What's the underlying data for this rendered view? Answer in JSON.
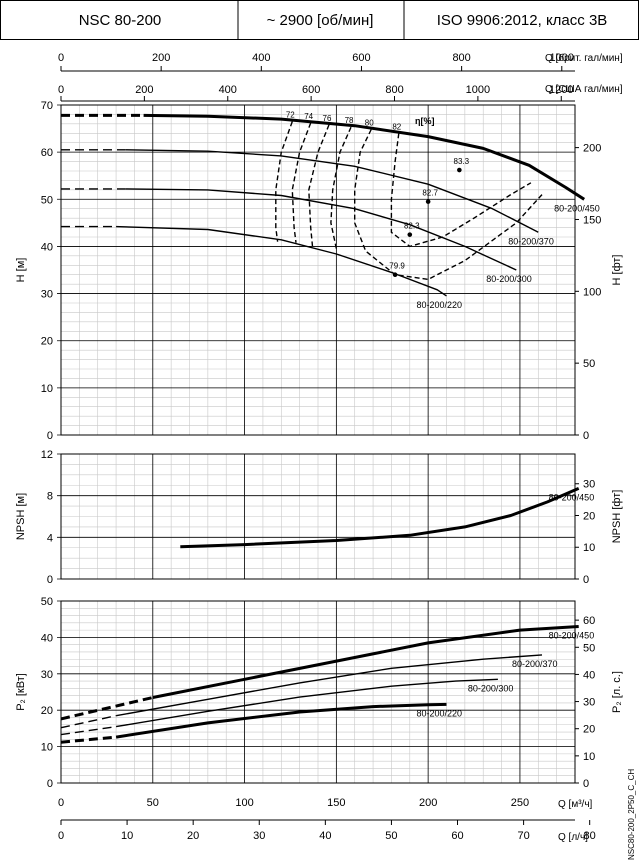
{
  "header": {
    "model": "NSC 80-200",
    "speed": "~ 2900 [об/мин]",
    "standard": "ISO 9906:2012, класс 3B"
  },
  "doc_code": "NSC80-200_2P50_C_CH",
  "top_axes": {
    "uk_label": "Q [брит. гал/мин]",
    "uk_ticks": [
      "0",
      "200",
      "400",
      "600",
      "800",
      "1000"
    ],
    "us_label": "Q [США гал/мин]",
    "us_ticks": [
      "0",
      "200",
      "400",
      "600",
      "800",
      "1000",
      "1200"
    ]
  },
  "bottom_axes": {
    "m3h_label": "Q [м³/ч]",
    "m3h_ticks": [
      "0",
      "50",
      "100",
      "150",
      "200",
      "250"
    ],
    "ls_label": "Q [л/ч]",
    "ls_ticks": [
      "0",
      "10",
      "20",
      "30",
      "40",
      "50",
      "60",
      "70",
      "80"
    ]
  },
  "colors": {
    "line": "#000000",
    "grid_minor": "#c8c8c8",
    "grid_major": "#000000"
  },
  "chart_data": [
    {
      "id": "head",
      "type": "line",
      "x_unit": "m3/h",
      "xlim": [
        0,
        280
      ],
      "ylabel": "H [м]",
      "ylim": [
        0,
        70
      ],
      "y_ticks": [
        "0",
        "10",
        "20",
        "30",
        "40",
        "50",
        "60",
        "70"
      ],
      "y2label": "H [фт]",
      "y2_ticks": [
        "0",
        "50",
        "100",
        "150",
        "200"
      ],
      "series": [
        {
          "name": "80-200/450",
          "label": "80-200/450",
          "width": "thick",
          "dashed": [
            [
              0,
              67.8
            ],
            [
              45,
              67.8
            ]
          ],
          "points": [
            [
              45,
              67.8
            ],
            [
              80,
              67.6
            ],
            [
              120,
              67
            ],
            [
              160,
              65.6
            ],
            [
              200,
              63.3
            ],
            [
              230,
              60.8
            ],
            [
              255,
              57.2
            ],
            [
              275,
              52.5
            ],
            [
              285,
              50
            ]
          ]
        },
        {
          "name": "80-200/370",
          "label": "80-200/370",
          "width": "thin",
          "dashed": [
            [
              0,
              60.5
            ],
            [
              35,
              60.5
            ]
          ],
          "points": [
            [
              35,
              60.5
            ],
            [
              80,
              60.2
            ],
            [
              120,
              59.2
            ],
            [
              160,
              57
            ],
            [
              200,
              53.2
            ],
            [
              235,
              48
            ],
            [
              260,
              43
            ]
          ]
        },
        {
          "name": "80-200/300",
          "label": "80-200/300",
          "width": "thin",
          "dashed": [
            [
              0,
              52.2
            ],
            [
              35,
              52.2
            ]
          ],
          "points": [
            [
              35,
              52.2
            ],
            [
              80,
              52
            ],
            [
              120,
              50.8
            ],
            [
              160,
              48
            ],
            [
              190,
              44.6
            ],
            [
              220,
              40
            ],
            [
              248,
              35
            ]
          ]
        },
        {
          "name": "80-200/220",
          "label": "80-200/220",
          "width": "thin",
          "dashed": [
            [
              0,
              44.2
            ],
            [
              30,
              44.2
            ]
          ],
          "points": [
            [
              30,
              44.2
            ],
            [
              80,
              43.6
            ],
            [
              120,
              41.4
            ],
            [
              150,
              38.4
            ],
            [
              180,
              34.5
            ],
            [
              205,
              30.8
            ],
            [
              210,
              29.5
            ]
          ]
        }
      ],
      "efficiency": {
        "title": "η[%]",
        "iso_lines": [
          {
            "label": "72",
            "points": [
              [
                126,
                66.5
              ],
              [
                120,
                60
              ],
              [
                117,
                52
              ],
              [
                117,
                44
              ],
              [
                118,
                41
              ]
            ]
          },
          {
            "label": "74",
            "points": [
              [
                136,
                66.2
              ],
              [
                130,
                60
              ],
              [
                126,
                52
              ],
              [
                127,
                44
              ],
              [
                128,
                40.8
              ]
            ]
          },
          {
            "label": "76",
            "points": [
              [
                146,
                65.8
              ],
              [
                140,
                60
              ],
              [
                135,
                52
              ],
              [
                136,
                44
              ],
              [
                137,
                40
              ]
            ]
          },
          {
            "label": "78",
            "points": [
              [
                158,
                65.3
              ],
              [
                152,
                60
              ],
              [
                148,
                52
              ],
              [
                147,
                45
              ],
              [
                150,
                39.5
              ]
            ]
          },
          {
            "label": "80",
            "points": [
              [
                169,
                64.8
              ],
              [
                163,
                60
              ],
              [
                160,
                52
              ],
              [
                160,
                45
              ],
              [
                166,
                39
              ],
              [
                182,
                34
              ],
              [
                200,
                33
              ],
              [
                220,
                37
              ],
              [
                248,
                45
              ],
              [
                262,
                51
              ]
            ]
          },
          {
            "label": "82",
            "points": [
              [
                184,
                64
              ],
              [
                182,
                58
              ],
              [
                180,
                50
              ],
              [
                180,
                43
              ],
              [
                190,
                40
              ],
              [
                208,
                42
              ],
              [
                225,
                46
              ],
              [
                245,
                51
              ],
              [
                256,
                53.5
              ]
            ]
          }
        ],
        "points": [
          {
            "label": "83.3",
            "q": 217,
            "h": 56.2
          },
          {
            "label": "82.7",
            "q": 200,
            "h": 49.5
          },
          {
            "label": "82.3",
            "q": 190,
            "h": 42.5
          },
          {
            "label": "79.9",
            "q": 182,
            "h": 34
          }
        ]
      }
    },
    {
      "id": "npsh",
      "type": "line",
      "x_unit": "m3/h",
      "xlim": [
        0,
        280
      ],
      "ylabel": "NPSH [м]",
      "ylim": [
        0,
        12
      ],
      "y_ticks": [
        "0",
        "4",
        "8",
        "12"
      ],
      "y2label": "NPSH [фт]",
      "y2_ticks": [
        "0",
        "10",
        "20",
        "30"
      ],
      "series": [
        {
          "name": "80-200/450",
          "label": "80-200/450",
          "width": "thick",
          "points": [
            [
              65,
              3.1
            ],
            [
              100,
              3.3
            ],
            [
              150,
              3.7
            ],
            [
              190,
              4.2
            ],
            [
              220,
              5.0
            ],
            [
              245,
              6.1
            ],
            [
              265,
              7.4
            ],
            [
              282,
              8.7
            ]
          ]
        }
      ]
    },
    {
      "id": "power",
      "type": "line",
      "x_unit": "m3/h",
      "xlim": [
        0,
        280
      ],
      "ylabel": "P₂ [кВт]",
      "ylim": [
        0,
        50
      ],
      "y_ticks": [
        "0",
        "10",
        "20",
        "30",
        "40",
        "50"
      ],
      "y2label": "P₂ [л. с.]",
      "y2_ticks": [
        "0",
        "10",
        "20",
        "30",
        "40",
        "50",
        "60"
      ],
      "series": [
        {
          "name": "80-200/450",
          "label": "80-200/450",
          "width": "thick",
          "dashed": [
            [
              0,
              17.6
            ],
            [
              50,
              23.5
            ]
          ],
          "points": [
            [
              50,
              23.5
            ],
            [
              100,
              28.5
            ],
            [
              150,
              33.5
            ],
            [
              200,
              38.5
            ],
            [
              250,
              42
            ],
            [
              282,
              43
            ]
          ]
        },
        {
          "name": "80-200/370",
          "label": "80-200/370",
          "width": "thin",
          "dashed": [
            [
              0,
              15.2
            ],
            [
              30,
              18.5
            ]
          ],
          "points": [
            [
              30,
              18.5
            ],
            [
              80,
              23
            ],
            [
              130,
              27.5
            ],
            [
              180,
              31.5
            ],
            [
              230,
              34
            ],
            [
              262,
              35.2
            ]
          ]
        },
        {
          "name": "80-200/300",
          "label": "80-200/300",
          "width": "thin",
          "dashed": [
            [
              0,
              13.3
            ],
            [
              30,
              15.5
            ]
          ],
          "points": [
            [
              30,
              15.5
            ],
            [
              80,
              19.7
            ],
            [
              130,
              23.6
            ],
            [
              180,
              26.6
            ],
            [
              215,
              28
            ],
            [
              238,
              28.5
            ]
          ]
        },
        {
          "name": "80-200/220",
          "label": "80-200/220",
          "width": "thick",
          "dashed": [
            [
              0,
              11.2
            ],
            [
              30,
              12.6
            ]
          ],
          "points": [
            [
              30,
              12.6
            ],
            [
              80,
              16.5
            ],
            [
              130,
              19.5
            ],
            [
              170,
              21
            ],
            [
              200,
              21.5
            ],
            [
              210,
              21.6
            ]
          ]
        }
      ]
    }
  ]
}
